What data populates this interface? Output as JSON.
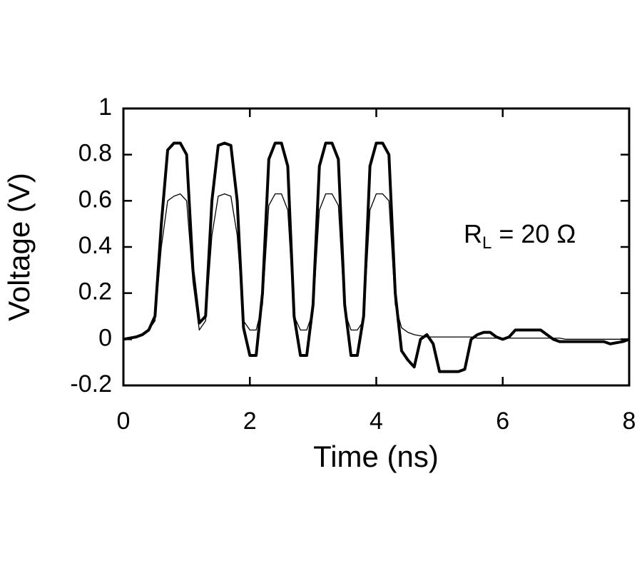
{
  "chart_data": {
    "type": "line",
    "x_label": "Time (ns)",
    "y_label": "Voltage (V)",
    "annotation": {
      "main": "R",
      "subscript": "L",
      "rest": " = 20 Ω"
    },
    "x": [
      0,
      0.1,
      0.2,
      0.3,
      0.4,
      0.5,
      0.6,
      0.7,
      0.8,
      0.9,
      1,
      1.1,
      1.2,
      1.3,
      1.4,
      1.5,
      1.6,
      1.7,
      1.8,
      1.9,
      2,
      2.1,
      2.2,
      2.3,
      2.4,
      2.5,
      2.6,
      2.7,
      2.8,
      2.9,
      3,
      3.1,
      3.2,
      3.3,
      3.4,
      3.5,
      3.6,
      3.7,
      3.8,
      3.9,
      4,
      4.1,
      4.2,
      4.3,
      4.4,
      4.5,
      4.6,
      4.7,
      4.8,
      4.9,
      5,
      5.1,
      5.2,
      5.3,
      5.4,
      5.5,
      5.6,
      5.7,
      5.8,
      5.9,
      6,
      6.1,
      6.2,
      6.3,
      6.4,
      6.5,
      6.6,
      6.7,
      6.8,
      6.9,
      7,
      7.1,
      7.2,
      7.3,
      7.4,
      7.5,
      7.6,
      7.7,
      7.8,
      7.9,
      8
    ],
    "series": [
      {
        "color": "#000000",
        "width": 4,
        "values": [
          0,
          0.005,
          0.01,
          0.02,
          0.04,
          0.1,
          0.5,
          0.82,
          0.85,
          0.85,
          0.8,
          0.3,
          0.07,
          0.1,
          0.6,
          0.84,
          0.85,
          0.84,
          0.6,
          0.05,
          -0.07,
          -0.07,
          0.2,
          0.78,
          0.85,
          0.85,
          0.75,
          0.1,
          -0.07,
          -0.07,
          0.15,
          0.75,
          0.85,
          0.85,
          0.78,
          0.15,
          -0.07,
          -0.07,
          0.1,
          0.75,
          0.85,
          0.85,
          0.8,
          0.2,
          -0.05,
          -0.09,
          -0.12,
          0,
          0.02,
          -0.02,
          -0.14,
          -0.14,
          -0.14,
          -0.14,
          -0.13,
          0,
          0.02,
          0.03,
          0.03,
          0.01,
          0,
          0.01,
          0.04,
          0.04,
          0.04,
          0.04,
          0.04,
          0.02,
          0,
          -0.01,
          -0.01,
          -0.01,
          -0.01,
          -0.01,
          -0.01,
          -0.01,
          -0.01,
          -0.02,
          -0.015,
          -0.01,
          0
        ]
      },
      {
        "color": "#000000",
        "width": 1.3,
        "values": [
          0,
          0.005,
          0.01,
          0.02,
          0.04,
          0.08,
          0.4,
          0.6,
          0.62,
          0.63,
          0.6,
          0.25,
          0.04,
          0.08,
          0.45,
          0.62,
          0.63,
          0.62,
          0.45,
          0.08,
          0.04,
          0.04,
          0.15,
          0.58,
          0.63,
          0.63,
          0.56,
          0.1,
          0.04,
          0.04,
          0.12,
          0.56,
          0.63,
          0.63,
          0.58,
          0.12,
          0.04,
          0.04,
          0.08,
          0.56,
          0.63,
          0.63,
          0.6,
          0.15,
          0.05,
          0.03,
          0.02,
          0.015,
          0.01,
          0.01,
          0.01,
          0.01,
          0.01,
          0.01,
          0.01,
          0.01,
          0.005,
          0.005,
          0.005,
          0.005,
          0.005,
          0.005,
          0.005,
          0.005,
          0.005,
          0.005,
          0.005,
          0.005,
          0.005,
          0.005,
          0,
          0,
          0,
          0,
          0,
          0,
          0,
          0,
          0,
          0,
          0
        ]
      }
    ],
    "xlim": [
      0,
      8
    ],
    "ylim": [
      -0.2,
      1
    ],
    "xticks": [
      0,
      2,
      4,
      6,
      8
    ],
    "yticks": [
      -0.2,
      0,
      0.2,
      0.4,
      0.6,
      0.8,
      1
    ]
  }
}
